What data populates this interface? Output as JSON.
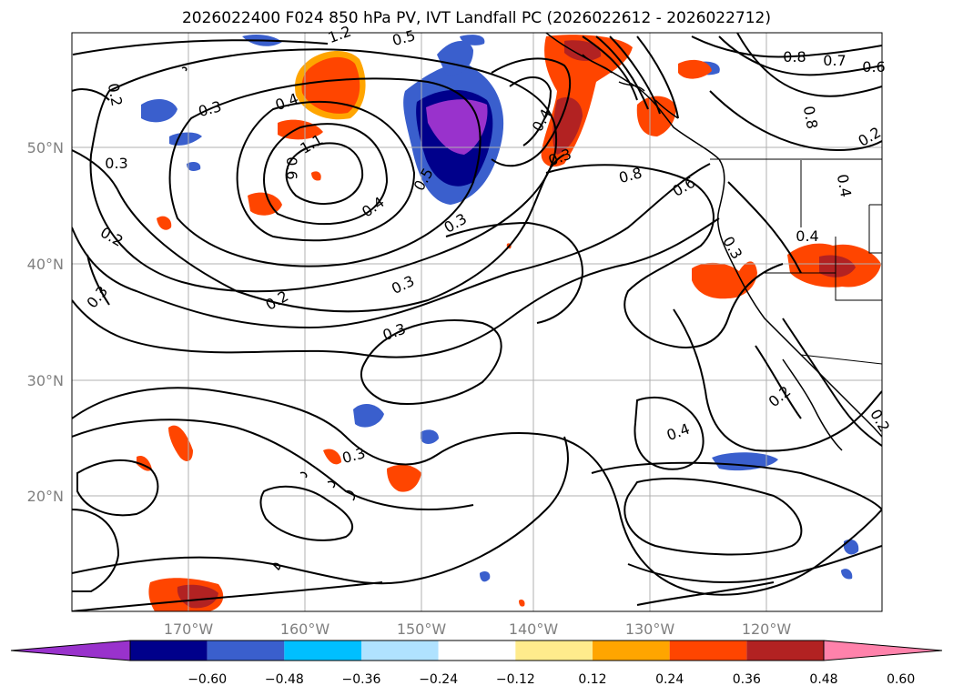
{
  "title": "2026022400 F024 850 hPa PV, IVT Landfall PC (2026022612 - 2026022712)",
  "lat_ticks": [
    "50°N",
    "40°N",
    "30°N",
    "20°N"
  ],
  "lon_ticks": [
    "170°W",
    "160°W",
    "150°W",
    "140°W",
    "130°W",
    "120°W"
  ],
  "contour_labels": [
    "1.2",
    "0.5",
    "0.8",
    "0.7",
    "0.6",
    "0.2",
    "0.3",
    "0.4",
    "1.1",
    "0.6",
    "0.4",
    "0.8",
    "0.2",
    "0.3",
    "0.4",
    "0.5",
    "0.3",
    "0.8",
    "0.6",
    "0.4",
    "0.3",
    "0.2",
    "0.3",
    "0.4",
    "0.2",
    "0.3",
    "0.3",
    "0.3",
    "0.2",
    "0.4",
    "0.2",
    "0.3"
  ],
  "colorbar": {
    "colors": [
      "#9932cc",
      "#00008b",
      "#3a5fcd",
      "#00bfff",
      "#b0e2ff",
      "#ffffff",
      "#ffeb8c",
      "#ffa500",
      "#ff4500",
      "#b22222",
      "#ff82ab"
    ],
    "ticks": [
      "−0.60",
      "−0.48",
      "−0.36",
      "−0.24",
      "−0.12",
      "0.12",
      "0.24",
      "0.36",
      "0.48",
      "0.60"
    ]
  },
  "colors": {
    "contour": "#000000",
    "grid": "#b0b0b0",
    "coast": "#000000"
  }
}
